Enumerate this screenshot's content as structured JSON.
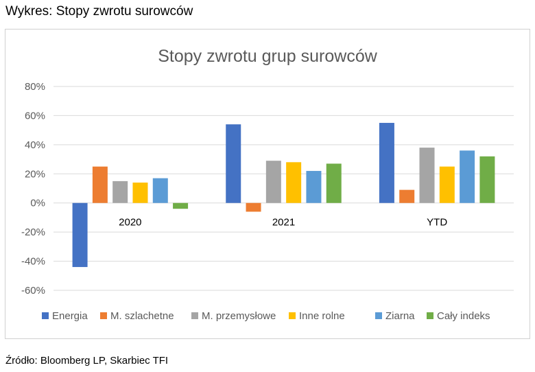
{
  "page": {
    "heading": "Wykres: Stopy zwrotu surowców",
    "source": "Źródło: Bloomberg LP, Skarbiec TFI"
  },
  "chart_data": {
    "type": "bar",
    "title": "Stopy zwrotu grup surowców",
    "xlabel": "",
    "ylabel": "",
    "categories": [
      "2020",
      "2021",
      "YTD"
    ],
    "series": [
      {
        "name": "Energia",
        "color": "#4472C4",
        "values": [
          -44,
          54,
          55
        ]
      },
      {
        "name": "M. szlachetne",
        "color": "#ED7D31",
        "values": [
          25,
          -6,
          9
        ]
      },
      {
        "name": "M. przemysłowe",
        "color": "#A5A5A5",
        "values": [
          15,
          29,
          38
        ]
      },
      {
        "name": "Inne rolne",
        "color": "#FFC000",
        "values": [
          14,
          28,
          25
        ]
      },
      {
        "name": "Ziarna",
        "color": "#5B9BD5",
        "values": [
          17,
          22,
          36
        ]
      },
      {
        "name": "Cały indeks",
        "color": "#70AD47",
        "values": [
          -4,
          27,
          32
        ]
      }
    ],
    "ylim": [
      -60,
      80
    ],
    "yticks": [
      80,
      60,
      40,
      20,
      0,
      -20,
      -40,
      -60
    ],
    "ytick_labels": [
      "80%",
      "60%",
      "40%",
      "20%",
      "0%",
      "-20%",
      "-40%",
      "-60%"
    ],
    "grid": true,
    "legend_position": "bottom"
  }
}
